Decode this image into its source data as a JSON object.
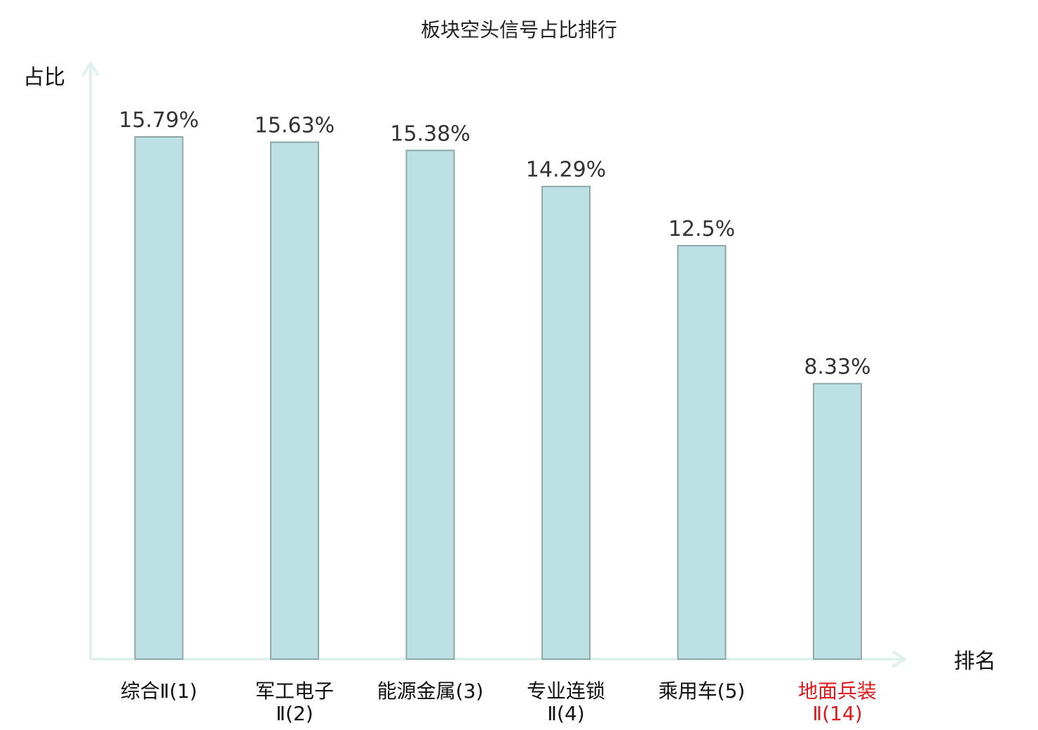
{
  "chart_data": {
    "type": "bar",
    "title": "板块空头信号占比排行",
    "ylabel": "占比",
    "xlabel": "排名",
    "ylim": [
      0,
      18.4
    ],
    "grid": false,
    "legend": "none",
    "categories": [
      {
        "lines": [
          "综合Ⅱ(1)"
        ],
        "highlight": false
      },
      {
        "lines": [
          "军工电子",
          "Ⅱ(2)"
        ],
        "highlight": false
      },
      {
        "lines": [
          "能源金属(3)"
        ],
        "highlight": false
      },
      {
        "lines": [
          "专业连锁",
          "Ⅱ(4)"
        ],
        "highlight": false
      },
      {
        "lines": [
          "乘用车(5)"
        ],
        "highlight": false
      },
      {
        "lines": [
          "地面兵装",
          "Ⅱ(14)"
        ],
        "highlight": true
      }
    ],
    "values": [
      15.79,
      15.63,
      15.38,
      14.29,
      12.5,
      8.33
    ],
    "value_labels": [
      "15.79%",
      "15.63%",
      "15.38%",
      "14.29%",
      "12.5%",
      "8.33%"
    ]
  },
  "colors": {
    "bar_fill": "#bce0e3",
    "bar_stroke": "#8fa9aa",
    "axis": "#dff0ed",
    "label_text": "#333333",
    "highlight_text": "#e0191c"
  }
}
